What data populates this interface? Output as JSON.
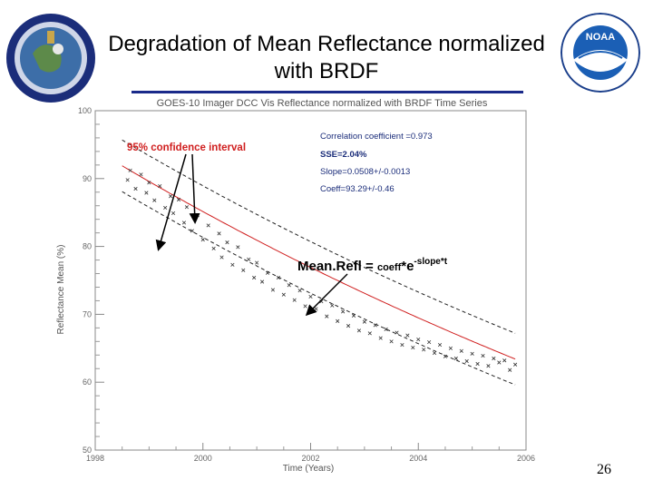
{
  "slide": {
    "title_line1": "Degradation of Mean Reflectance normalized",
    "title_line2": "with BRDF",
    "page_number": "26"
  },
  "chart_data": {
    "type": "scatter",
    "title": "GOES-10 Imager   DCC   Vis Reflectance normalized with BRDF Time Series",
    "xlabel": "Time (Years)",
    "ylabel": "Reflectance Mean (%)",
    "xlim": [
      1998,
      2006
    ],
    "ylim": [
      50,
      100
    ],
    "x_ticks": [
      1998,
      2000,
      2002,
      2004,
      2006
    ],
    "x_tick_labels": [
      "1998",
      "2000",
      "2002",
      "2004",
      "2006"
    ],
    "y_ticks": [
      50,
      60,
      70,
      80,
      90,
      100
    ],
    "y_tick_labels": [
      "50",
      "60",
      "70",
      "80",
      "90",
      "100"
    ],
    "stats": {
      "correlation": "Correlation coefficient =0.973",
      "sse": "SSE=2.04%",
      "slope": "Slope=0.0508+/-0.0013",
      "coeff": "Coeff=93.29+/-0.46"
    },
    "annotations": {
      "confidence": "95% confidence interval",
      "formula_main": "Mean.Refl = ",
      "formula_coeff": "coeff",
      "formula_mid": "*e",
      "formula_exp": "-slope*t"
    },
    "fit": {
      "coeff": 93.29,
      "slope": 0.0508,
      "t0": 1998.2,
      "band": 3.8
    },
    "series": [
      {
        "marker": "x",
        "x": [
          1998.6,
          1998.65,
          1998.75,
          1998.85,
          1998.95,
          1999.0,
          1999.1,
          1999.2,
          1999.3,
          1999.4,
          1999.45,
          1999.55,
          1999.65,
          1999.7,
          1999.8,
          1999.9,
          2000.0,
          2000.1,
          2000.2,
          2000.3,
          2000.35,
          2000.45,
          2000.55,
          2000.65,
          2000.75,
          2000.85,
          2000.95,
          2001.0,
          2001.1,
          2001.2,
          2001.3,
          2001.4,
          2001.5,
          2001.6,
          2001.7,
          2001.8,
          2001.9,
          2002.0,
          2002.1,
          2002.2,
          2002.3,
          2002.4,
          2002.5,
          2002.6,
          2002.7,
          2002.8,
          2002.9,
          2003.0,
          2003.1,
          2003.2,
          2003.3,
          2003.4,
          2003.5,
          2003.6,
          2003.7,
          2003.8,
          2003.9,
          2004.0,
          2004.1,
          2004.2,
          2004.3,
          2004.4,
          2004.5,
          2004.6,
          2004.7,
          2004.8,
          2004.9,
          2005.0,
          2005.1,
          2005.2,
          2005.3,
          2005.4,
          2005.5,
          2005.6,
          2005.7,
          2005.8
        ],
        "y": [
          89.8,
          91.2,
          88.5,
          90.6,
          87.9,
          89.4,
          86.8,
          88.9,
          85.7,
          87.4,
          84.9,
          86.9,
          83.5,
          85.8,
          82.3,
          84.6,
          81.0,
          83.1,
          79.7,
          81.9,
          78.4,
          80.6,
          77.3,
          79.9,
          76.5,
          78.1,
          75.4,
          77.6,
          74.8,
          76.1,
          73.6,
          75.4,
          72.9,
          74.3,
          72.1,
          73.5,
          71.2,
          72.6,
          70.8,
          71.9,
          69.7,
          71.3,
          69.0,
          70.4,
          68.3,
          69.8,
          67.6,
          68.9,
          67.2,
          68.4,
          66.5,
          67.8,
          66.0,
          67.3,
          65.5,
          66.9,
          65.1,
          66.3,
          64.8,
          65.9,
          64.3,
          65.5,
          63.8,
          65.0,
          63.5,
          64.6,
          63.1,
          64.2,
          62.7,
          63.9,
          62.4,
          63.5,
          62.9,
          63.2,
          61.8,
          62.6
        ]
      }
    ]
  }
}
